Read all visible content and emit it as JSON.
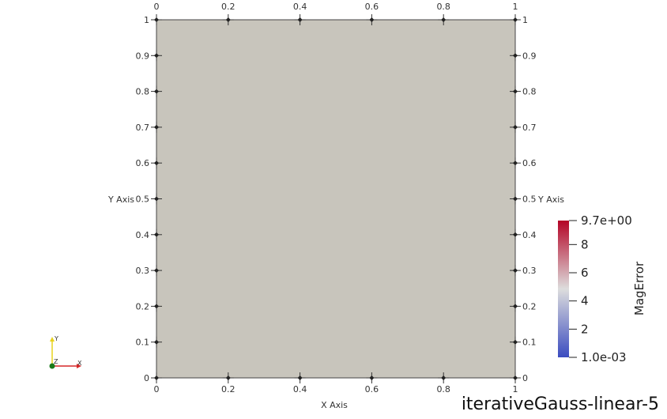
{
  "caption": "iterativeGauss-linear-5",
  "plot": {
    "fill_color": "#c8c5bc",
    "x_axis_title": "X Axis",
    "y_axis_title": "Y Axis",
    "x_ticks": [
      "0",
      "0.2",
      "0.4",
      "0.6",
      "0.8",
      "1"
    ],
    "y_ticks": [
      "0",
      "0.1",
      "0.2",
      "0.3",
      "0.4",
      "0.5",
      "0.6",
      "0.7",
      "0.8",
      "0.9",
      "1"
    ],
    "x_range": [
      0,
      1
    ],
    "y_range": [
      0,
      1
    ]
  },
  "colorbar": {
    "title": "MagError",
    "labels": [
      "9.7e+00",
      "8",
      "6",
      "4",
      "2",
      "1.0e-03"
    ],
    "label_values": [
      9.7,
      8,
      6,
      4,
      2,
      0.001
    ],
    "range": [
      0.001,
      9.7
    ],
    "colors": [
      "#3b4cc0",
      "#dddddd",
      "#b40426"
    ]
  },
  "orientation": {
    "y_label": "Y",
    "z_label": "Z",
    "x_label": "X",
    "colors": {
      "x": "#d62728",
      "y": "#e8d21d",
      "z": "#1a7a1a"
    }
  }
}
